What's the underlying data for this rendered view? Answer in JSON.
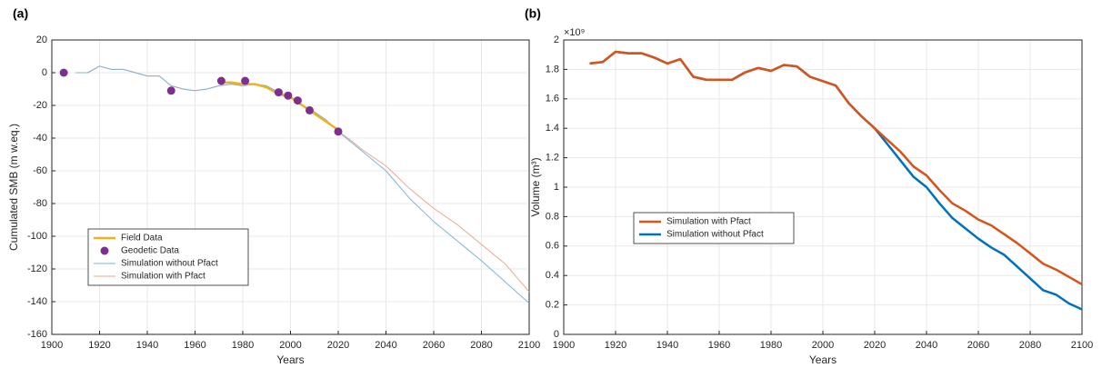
{
  "chart_data": [
    {
      "type": "line",
      "panel_label": "(a)",
      "xlabel": "Years",
      "ylabel": "Cumulated SMB (m w.eq.)",
      "xlim": [
        1900,
        2100
      ],
      "xticks": [
        1900,
        1920,
        1940,
        1960,
        1980,
        2000,
        2020,
        2040,
        2060,
        2080,
        2100
      ],
      "ylim": [
        -160,
        20
      ],
      "yticks": [
        -160,
        -140,
        -120,
        -100,
        -80,
        -60,
        -40,
        -20,
        0,
        20
      ],
      "grid": true,
      "legend": "lower left",
      "series": [
        {
          "name": "Field Data",
          "kind": "line",
          "color": "#edb120",
          "width": 2.5,
          "x": [
            1970,
            1975,
            1980,
            1985,
            1990,
            1995,
            2000,
            2005,
            2010,
            2015,
            2020
          ],
          "values": [
            -6,
            -6,
            -7,
            -7,
            -9,
            -13,
            -15,
            -20,
            -25,
            -30,
            -35
          ]
        },
        {
          "name": "Geodetic Data",
          "kind": "scatter",
          "color": "#7e2f8e",
          "width": 1,
          "x": [
            1905,
            1950,
            1971,
            1981,
            1995,
            1999,
            2003,
            2008,
            2020
          ],
          "values": [
            0,
            -11,
            -5,
            -5,
            -12,
            -14,
            -17,
            -23,
            -36
          ]
        },
        {
          "name": "Simulation without Pfact",
          "kind": "line",
          "color": "#7fb3d9",
          "width": 1,
          "x": [
            1910,
            1915,
            1920,
            1925,
            1930,
            1935,
            1940,
            1945,
            1950,
            1955,
            1960,
            1965,
            1970,
            1975,
            1980,
            1985,
            1990,
            1995,
            2000,
            2005,
            2010,
            2015,
            2020,
            2025,
            2030,
            2040,
            2050,
            2060,
            2070,
            2080,
            2090,
            2100
          ],
          "values": [
            0,
            0,
            4,
            2,
            2,
            0,
            -2,
            -2,
            -8,
            -10,
            -11,
            -10,
            -8,
            -7,
            -8,
            -7,
            -8,
            -12,
            -15,
            -20,
            -24,
            -29,
            -36,
            -42,
            -48,
            -60,
            -77,
            -91,
            -103,
            -115,
            -128,
            -141
          ]
        },
        {
          "name": "Simulation with Pfact",
          "kind": "line",
          "color": "#eba68b",
          "width": 1,
          "x": [
            1910,
            1915,
            1920,
            1925,
            1930,
            1935,
            1940,
            1945,
            1950,
            1955,
            1960,
            1965,
            1970,
            1975,
            1980,
            1985,
            1990,
            1995,
            2000,
            2005,
            2010,
            2015,
            2020,
            2025,
            2030,
            2040,
            2050,
            2060,
            2070,
            2080,
            2090,
            2100
          ],
          "values": [
            0,
            0,
            4,
            2,
            2,
            0,
            -2,
            -2,
            -8,
            -10,
            -11,
            -10,
            -8,
            -7,
            -8,
            -7,
            -8,
            -12,
            -15,
            -20,
            -24,
            -29,
            -36,
            -41,
            -47,
            -57,
            -71,
            -83,
            -93,
            -105,
            -117,
            -134
          ]
        }
      ]
    },
    {
      "type": "line",
      "panel_label": "(b)",
      "xlabel": "Years",
      "ylabel": "Volume (m³)",
      "y_multiplier": "×10⁹",
      "xlim": [
        1900,
        2100
      ],
      "xticks": [
        1900,
        1920,
        1940,
        1960,
        1980,
        2000,
        2020,
        2040,
        2060,
        2080,
        2100
      ],
      "ylim": [
        0,
        2
      ],
      "yticks": [
        0,
        0.2,
        0.4,
        0.6,
        0.8,
        1,
        1.2,
        1.4,
        1.6,
        1.8,
        2
      ],
      "grid": true,
      "legend": "center left",
      "series": [
        {
          "name": "Simulation with Pfact",
          "kind": "line",
          "color": "#d95319",
          "width": 2.5,
          "x": [
            1910,
            1915,
            1920,
            1925,
            1930,
            1935,
            1940,
            1945,
            1950,
            1955,
            1960,
            1965,
            1970,
            1975,
            1980,
            1985,
            1990,
            1995,
            2000,
            2005,
            2010,
            2015,
            2020,
            2025,
            2030,
            2035,
            2040,
            2045,
            2050,
            2055,
            2060,
            2065,
            2070,
            2075,
            2080,
            2085,
            2090,
            2095,
            2100
          ],
          "values": [
            1.84,
            1.85,
            1.92,
            1.91,
            1.91,
            1.88,
            1.84,
            1.87,
            1.75,
            1.73,
            1.73,
            1.73,
            1.78,
            1.81,
            1.79,
            1.83,
            1.82,
            1.75,
            1.72,
            1.69,
            1.57,
            1.48,
            1.4,
            1.32,
            1.24,
            1.14,
            1.08,
            0.98,
            0.89,
            0.84,
            0.78,
            0.74,
            0.68,
            0.62,
            0.55,
            0.48,
            0.44,
            0.39,
            0.34
          ]
        },
        {
          "name": "Simulation without Pfact",
          "kind": "line",
          "color": "#0072bd",
          "width": 2.5,
          "x": [
            1910,
            1915,
            1920,
            1925,
            1930,
            1935,
            1940,
            1945,
            1950,
            1955,
            1960,
            1965,
            1970,
            1975,
            1980,
            1985,
            1990,
            1995,
            2000,
            2005,
            2010,
            2015,
            2020,
            2025,
            2030,
            2035,
            2040,
            2045,
            2050,
            2055,
            2060,
            2065,
            2070,
            2075,
            2080,
            2085,
            2090,
            2095,
            2100
          ],
          "values": [
            1.84,
            1.85,
            1.92,
            1.91,
            1.91,
            1.88,
            1.84,
            1.87,
            1.75,
            1.73,
            1.73,
            1.73,
            1.78,
            1.81,
            1.79,
            1.83,
            1.82,
            1.75,
            1.72,
            1.69,
            1.57,
            1.48,
            1.4,
            1.29,
            1.18,
            1.07,
            1.0,
            0.89,
            0.79,
            0.72,
            0.65,
            0.59,
            0.54,
            0.46,
            0.38,
            0.3,
            0.27,
            0.21,
            0.17
          ]
        }
      ]
    }
  ]
}
